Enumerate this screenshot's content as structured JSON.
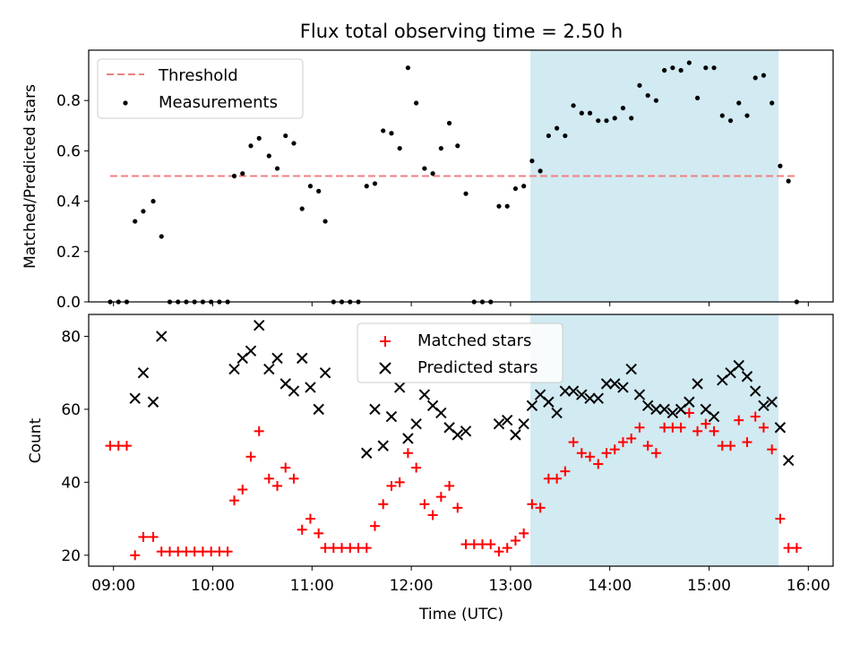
{
  "figure": {
    "title": "Flux total observing time = 2.50 h",
    "xlabel": "Time (UTC)"
  },
  "colors": {
    "threshold": "#f08080",
    "measurement": "#000000",
    "matched": "#ff0000",
    "predicted": "#000000",
    "span": "#add8e6"
  },
  "chart_data": [
    {
      "type": "scatter",
      "ylabel": "Matched/Predicted stars",
      "xlim": [
        "08:45",
        "16:15"
      ],
      "ylim": [
        0,
        1.0
      ],
      "ytick_labels": [
        "0.0",
        "0.2",
        "0.4",
        "0.6",
        "0.8"
      ],
      "xtick_labels": [
        "09:00",
        "10:00",
        "11:00",
        "12:00",
        "13:00",
        "14:00",
        "15:00",
        "16:00"
      ],
      "legend": {
        "position": "top-left",
        "entries": [
          "Threshold",
          "Measurements"
        ]
      },
      "threshold": {
        "name": "Threshold",
        "value": 0.5,
        "x_range": [
          "08:58",
          "15:52"
        ]
      },
      "highlight_span": [
        "13:12",
        "15:42"
      ],
      "series": [
        {
          "name": "Measurements",
          "points": [
            [
              "08:58",
              0
            ],
            [
              "09:03",
              0
            ],
            [
              "09:08",
              0
            ],
            [
              "09:13",
              0.32
            ],
            [
              "09:18",
              0.36
            ],
            [
              "09:24",
              0.4
            ],
            [
              "09:29",
              0.26
            ],
            [
              "09:34",
              0
            ],
            [
              "09:39",
              0
            ],
            [
              "09:44",
              0
            ],
            [
              "09:49",
              0
            ],
            [
              "09:54",
              0
            ],
            [
              "09:59",
              0
            ],
            [
              "10:04",
              0
            ],
            [
              "10:09",
              0
            ],
            [
              "10:13",
              0.5
            ],
            [
              "10:18",
              0.51
            ],
            [
              "10:23",
              0.62
            ],
            [
              "10:28",
              0.65
            ],
            [
              "10:34",
              0.58
            ],
            [
              "10:39",
              0.53
            ],
            [
              "10:44",
              0.66
            ],
            [
              "10:49",
              0.63
            ],
            [
              "10:54",
              0.37
            ],
            [
              "10:59",
              0.46
            ],
            [
              "11:04",
              0.44
            ],
            [
              "11:08",
              0.32
            ],
            [
              "11:13",
              0
            ],
            [
              "11:18",
              0
            ],
            [
              "11:23",
              0
            ],
            [
              "11:28",
              0
            ],
            [
              "11:33",
              0.46
            ],
            [
              "11:38",
              0.47
            ],
            [
              "11:43",
              0.68
            ],
            [
              "11:48",
              0.67
            ],
            [
              "11:53",
              0.61
            ],
            [
              "11:58",
              0.93
            ],
            [
              "12:03",
              0.79
            ],
            [
              "12:08",
              0.53
            ],
            [
              "12:13",
              0.51
            ],
            [
              "12:18",
              0.61
            ],
            [
              "12:23",
              0.71
            ],
            [
              "12:28",
              0.62
            ],
            [
              "12:33",
              0.43
            ],
            [
              "12:38",
              0
            ],
            [
              "12:43",
              0
            ],
            [
              "12:48",
              0
            ],
            [
              "12:53",
              0.38
            ],
            [
              "12:58",
              0.38
            ],
            [
              "13:03",
              0.45
            ],
            [
              "13:08",
              0.46
            ],
            [
              "13:13",
              0.56
            ],
            [
              "13:18",
              0.52
            ],
            [
              "13:23",
              0.66
            ],
            [
              "13:28",
              0.69
            ],
            [
              "13:33",
              0.66
            ],
            [
              "13:38",
              0.78
            ],
            [
              "13:43",
              0.75
            ],
            [
              "13:48",
              0.75
            ],
            [
              "13:53",
              0.72
            ],
            [
              "13:58",
              0.72
            ],
            [
              "14:03",
              0.73
            ],
            [
              "14:08",
              0.77
            ],
            [
              "14:13",
              0.73
            ],
            [
              "14:18",
              0.86
            ],
            [
              "14:23",
              0.82
            ],
            [
              "14:28",
              0.8
            ],
            [
              "14:33",
              0.92
            ],
            [
              "14:38",
              0.93
            ],
            [
              "14:43",
              0.92
            ],
            [
              "14:48",
              0.95
            ],
            [
              "14:53",
              0.81
            ],
            [
              "14:58",
              0.93
            ],
            [
              "15:03",
              0.93
            ],
            [
              "15:08",
              0.74
            ],
            [
              "15:13",
              0.72
            ],
            [
              "15:18",
              0.79
            ],
            [
              "15:23",
              0.74
            ],
            [
              "15:28",
              0.89
            ],
            [
              "15:33",
              0.9
            ],
            [
              "15:38",
              0.79
            ],
            [
              "15:43",
              0.54
            ],
            [
              "15:48",
              0.48
            ],
            [
              "15:53",
              0
            ]
          ]
        }
      ]
    },
    {
      "type": "scatter",
      "ylabel": "Count",
      "xlabel": "Time (UTC)",
      "xlim": [
        "08:45",
        "16:15"
      ],
      "ylim": [
        17,
        86
      ],
      "ytick_labels": [
        "20",
        "40",
        "60",
        "80"
      ],
      "xtick_labels": [
        "09:00",
        "10:00",
        "11:00",
        "12:00",
        "13:00",
        "14:00",
        "15:00",
        "16:00"
      ],
      "legend": {
        "position": "top-center",
        "entries": [
          "Matched stars",
          "Predicted stars"
        ]
      },
      "highlight_span": [
        "13:12",
        "15:42"
      ],
      "series": [
        {
          "name": "Matched stars",
          "points": [
            [
              "08:58",
              50
            ],
            [
              "09:03",
              50
            ],
            [
              "09:08",
              50
            ],
            [
              "09:13",
              20
            ],
            [
              "09:18",
              25
            ],
            [
              "09:24",
              25
            ],
            [
              "09:29",
              21
            ],
            [
              "09:34",
              21
            ],
            [
              "09:39",
              21
            ],
            [
              "09:44",
              21
            ],
            [
              "09:49",
              21
            ],
            [
              "09:54",
              21
            ],
            [
              "09:59",
              21
            ],
            [
              "10:04",
              21
            ],
            [
              "10:09",
              21
            ],
            [
              "10:13",
              35
            ],
            [
              "10:18",
              38
            ],
            [
              "10:23",
              47
            ],
            [
              "10:28",
              54
            ],
            [
              "10:34",
              41
            ],
            [
              "10:39",
              39
            ],
            [
              "10:44",
              44
            ],
            [
              "10:49",
              41
            ],
            [
              "10:54",
              27
            ],
            [
              "10:59",
              30
            ],
            [
              "11:04",
              26
            ],
            [
              "11:08",
              22
            ],
            [
              "11:13",
              22
            ],
            [
              "11:18",
              22
            ],
            [
              "11:23",
              22
            ],
            [
              "11:28",
              22
            ],
            [
              "11:33",
              22
            ],
            [
              "11:38",
              28
            ],
            [
              "11:43",
              34
            ],
            [
              "11:48",
              39
            ],
            [
              "11:53",
              40
            ],
            [
              "11:58",
              48
            ],
            [
              "12:03",
              44
            ],
            [
              "12:08",
              34
            ],
            [
              "12:13",
              31
            ],
            [
              "12:18",
              36
            ],
            [
              "12:23",
              39
            ],
            [
              "12:28",
              33
            ],
            [
              "12:33",
              23
            ],
            [
              "12:38",
              23
            ],
            [
              "12:43",
              23
            ],
            [
              "12:48",
              23
            ],
            [
              "12:53",
              21
            ],
            [
              "12:58",
              22
            ],
            [
              "13:03",
              24
            ],
            [
              "13:08",
              26
            ],
            [
              "13:13",
              34
            ],
            [
              "13:18",
              33
            ],
            [
              "13:23",
              41
            ],
            [
              "13:28",
              41
            ],
            [
              "13:33",
              43
            ],
            [
              "13:38",
              51
            ],
            [
              "13:43",
              48
            ],
            [
              "13:48",
              47
            ],
            [
              "13:53",
              45
            ],
            [
              "13:58",
              48
            ],
            [
              "14:03",
              49
            ],
            [
              "14:08",
              51
            ],
            [
              "14:13",
              52
            ],
            [
              "14:18",
              55
            ],
            [
              "14:23",
              50
            ],
            [
              "14:28",
              48
            ],
            [
              "14:33",
              55
            ],
            [
              "14:38",
              55
            ],
            [
              "14:43",
              55
            ],
            [
              "14:48",
              59
            ],
            [
              "14:53",
              54
            ],
            [
              "14:58",
              56
            ],
            [
              "15:03",
              54
            ],
            [
              "15:08",
              50
            ],
            [
              "15:13",
              50
            ],
            [
              "15:18",
              57
            ],
            [
              "15:23",
              51
            ],
            [
              "15:28",
              58
            ],
            [
              "15:33",
              55
            ],
            [
              "15:38",
              49
            ],
            [
              "15:43",
              30
            ],
            [
              "15:48",
              22
            ],
            [
              "15:53",
              22
            ]
          ]
        },
        {
          "name": "Predicted stars",
          "points": [
            [
              "09:13",
              63
            ],
            [
              "09:18",
              70
            ],
            [
              "09:24",
              62
            ],
            [
              "09:29",
              80
            ],
            [
              "10:13",
              71
            ],
            [
              "10:18",
              74
            ],
            [
              "10:23",
              76
            ],
            [
              "10:28",
              83
            ],
            [
              "10:34",
              71
            ],
            [
              "10:39",
              74
            ],
            [
              "10:44",
              67
            ],
            [
              "10:49",
              65
            ],
            [
              "10:54",
              74
            ],
            [
              "10:59",
              66
            ],
            [
              "11:04",
              60
            ],
            [
              "11:08",
              70
            ],
            [
              "11:33",
              48
            ],
            [
              "11:38",
              60
            ],
            [
              "11:43",
              50
            ],
            [
              "11:48",
              58
            ],
            [
              "11:53",
              66
            ],
            [
              "11:58",
              52
            ],
            [
              "12:03",
              56
            ],
            [
              "12:08",
              64
            ],
            [
              "12:13",
              61
            ],
            [
              "12:18",
              59
            ],
            [
              "12:23",
              55
            ],
            [
              "12:28",
              53
            ],
            [
              "12:33",
              54
            ],
            [
              "12:53",
              56
            ],
            [
              "12:58",
              57
            ],
            [
              "13:03",
              53
            ],
            [
              "13:08",
              56
            ],
            [
              "13:13",
              61
            ],
            [
              "13:18",
              64
            ],
            [
              "13:23",
              62
            ],
            [
              "13:28",
              59
            ],
            [
              "13:33",
              65
            ],
            [
              "13:38",
              65
            ],
            [
              "13:43",
              64
            ],
            [
              "13:48",
              63
            ],
            [
              "13:53",
              63
            ],
            [
              "13:58",
              67
            ],
            [
              "14:03",
              67
            ],
            [
              "14:08",
              66
            ],
            [
              "14:13",
              71
            ],
            [
              "14:18",
              64
            ],
            [
              "14:23",
              61
            ],
            [
              "14:28",
              60
            ],
            [
              "14:33",
              60
            ],
            [
              "14:38",
              59
            ],
            [
              "14:43",
              60
            ],
            [
              "14:48",
              62
            ],
            [
              "14:53",
              67
            ],
            [
              "14:58",
              60
            ],
            [
              "15:03",
              58
            ],
            [
              "15:08",
              68
            ],
            [
              "15:13",
              70
            ],
            [
              "15:18",
              72
            ],
            [
              "15:23",
              69
            ],
            [
              "15:28",
              65
            ],
            [
              "15:33",
              61
            ],
            [
              "15:38",
              62
            ],
            [
              "15:43",
              55
            ],
            [
              "15:48",
              46
            ]
          ]
        }
      ]
    }
  ]
}
